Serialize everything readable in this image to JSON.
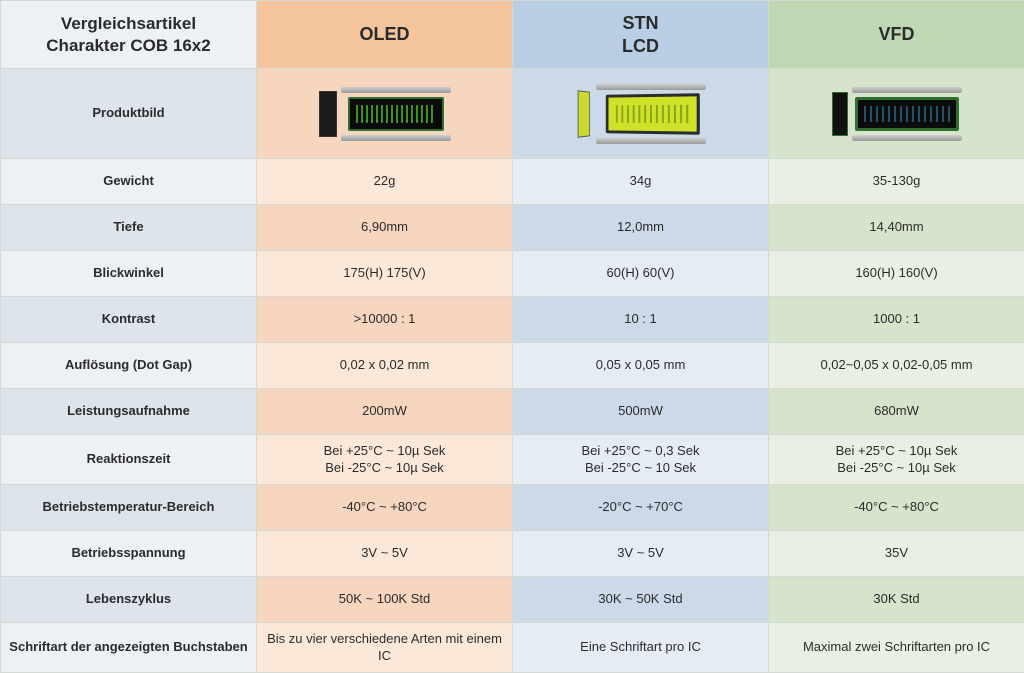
{
  "table": {
    "header_title": "Vergleichsartikel\nCharakter COB 16x2",
    "columns": [
      {
        "label": "OLED",
        "head_color": "#f4c49d",
        "light": "#fbe8d9",
        "dark": "#f6d6bf"
      },
      {
        "label": "STN\nLCD",
        "head_color": "#b9cee5",
        "light": "#e5ecf4",
        "dark": "#ccd9e8"
      },
      {
        "label": "VFD",
        "head_color": "#c0d8b2",
        "light": "#e9f0e3",
        "dark": "#d6e4cc"
      }
    ],
    "row_label_light": "#edf1f6",
    "row_label_dark": "#dde4ec",
    "border_color": "#d5d9d4",
    "text_color": "#2b2b2b",
    "font_family": "Arial",
    "cell_fontsize": 13,
    "header_fontsize": 18,
    "rows": [
      {
        "label": "Produktbild",
        "type": "image",
        "values": [
          "oled",
          "stn",
          "vfd"
        ]
      },
      {
        "label": "Gewicht",
        "values": [
          "22g",
          "34g",
          "35-130g"
        ]
      },
      {
        "label": "Tiefe",
        "values": [
          "6,90mm",
          "12,0mm",
          "14,40mm"
        ]
      },
      {
        "label": "Blickwinkel",
        "values": [
          "175(H) 175(V)",
          "60(H) 60(V)",
          "160(H) 160(V)"
        ]
      },
      {
        "label": "Kontrast",
        "values": [
          ">10000 : 1",
          "10 : 1",
          "1000 : 1"
        ]
      },
      {
        "label": "Auflösung (Dot Gap)",
        "values": [
          "0,02 x 0,02 mm",
          "0,05 x 0,05 mm",
          "0,02~0,05 x 0,02-0,05 mm"
        ]
      },
      {
        "label": "Leistungsaufnahme",
        "values": [
          "200mW",
          "500mW",
          "680mW"
        ]
      },
      {
        "label": "Reaktionszeit",
        "multiline": true,
        "values": [
          "Bei +25°C ~ 10µ Sek\nBei -25°C ~ 10µ Sek",
          "Bei +25°C ~ 0,3 Sek\nBei -25°C ~ 10 Sek",
          "Bei +25°C ~ 10µ Sek\nBei -25°C ~ 10µ Sek"
        ]
      },
      {
        "label": "Betriebstemperatur-Bereich",
        "values": [
          "-40°C ~ +80°C",
          "-20°C ~ +70°C",
          "-40°C ~ +80°C"
        ]
      },
      {
        "label": "Betriebsspannung",
        "values": [
          "3V ~ 5V",
          "3V ~ 5V",
          "35V"
        ]
      },
      {
        "label": "Lebenszyklus",
        "values": [
          "50K ~ 100K Std",
          "30K ~ 50K Std",
          "30K Std"
        ]
      },
      {
        "label": "Schriftart der angezeigten Buchstaben",
        "multiline": true,
        "values": [
          "Bis zu vier verschiedene Arten mit einem IC",
          "Eine Schriftart pro IC",
          "Maximal zwei Schriftarten pro IC"
        ]
      }
    ]
  }
}
